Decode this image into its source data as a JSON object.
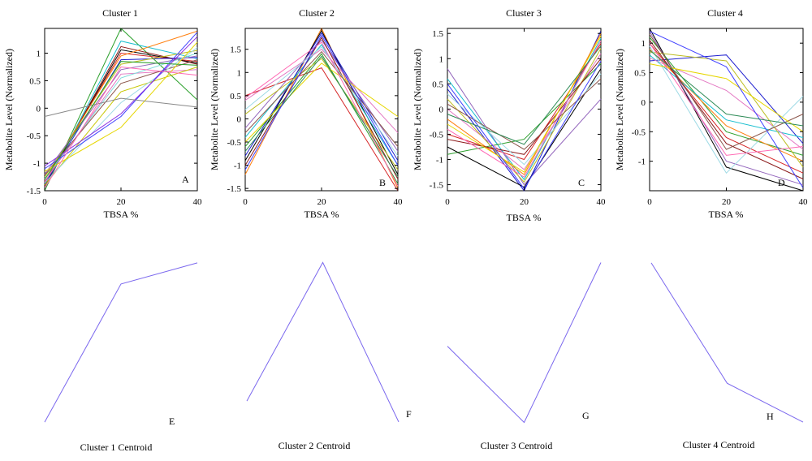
{
  "figure": {
    "ylabel": "Metabolite Level (Normalized)",
    "xlabel": "TBSA %",
    "x_ticks": [
      "0",
      "20",
      "40"
    ]
  },
  "chart_data": [
    {
      "type": "line",
      "title": "Cluster 1",
      "letter": "A",
      "xlabel": "TBSA %",
      "ylabel": "Metabolite Level (Normalized)",
      "x": [
        0,
        20,
        40
      ],
      "xlim": [
        0,
        40
      ],
      "ylim": [
        -1.5,
        1.45
      ],
      "yticks": [
        -1.5,
        -1,
        -0.5,
        0,
        0.5,
        1
      ],
      "ytick_labels": [
        "-1.5",
        "-1",
        "-0.5",
        "0",
        "0.5",
        "1"
      ],
      "grid": false,
      "series": [
        {
          "color": "#2ca02c",
          "values": [
            -1.5,
            1.45,
            0.15
          ]
        },
        {
          "color": "#17becf",
          "values": [
            -1.45,
            1.22,
            0.9
          ]
        },
        {
          "color": "#8b1a1a",
          "values": [
            -1.42,
            1.12,
            0.8
          ]
        },
        {
          "color": "#000000",
          "values": [
            -1.4,
            1.06,
            0.82
          ]
        },
        {
          "color": "#d62728",
          "values": [
            -1.35,
            1.0,
            0.85
          ]
        },
        {
          "color": "#ff7f0e",
          "values": [
            -1.3,
            0.95,
            1.4
          ]
        },
        {
          "color": "#1f1fcf",
          "values": [
            -1.38,
            0.88,
            0.92
          ]
        },
        {
          "color": "#bcbd22",
          "values": [
            -1.25,
            0.8,
            1.05
          ]
        },
        {
          "color": "#9467bd",
          "values": [
            -1.2,
            0.7,
            0.95
          ]
        },
        {
          "color": "#e377c2",
          "values": [
            -1.33,
            0.62,
            0.7
          ]
        },
        {
          "color": "#7fd9d9",
          "values": [
            -1.28,
            0.55,
            1.0
          ]
        },
        {
          "color": "#8c564b",
          "values": [
            -1.22,
            0.45,
            0.88
          ]
        },
        {
          "color": "#c7c700",
          "values": [
            -1.4,
            0.3,
            0.75
          ]
        },
        {
          "color": "#9edae5",
          "values": [
            -1.36,
            0.1,
            1.1
          ]
        },
        {
          "color": "#4040ff",
          "values": [
            -1.1,
            -0.15,
            1.38
          ]
        },
        {
          "color": "#8a2be2",
          "values": [
            -1.05,
            -0.1,
            1.3
          ]
        },
        {
          "color": "#e6d600",
          "values": [
            -1.15,
            -0.35,
            1.2
          ]
        },
        {
          "color": "#888888",
          "values": [
            -0.15,
            0.18,
            0.02
          ]
        },
        {
          "color": "#ff69b4",
          "values": [
            -1.45,
            0.75,
            0.6
          ]
        },
        {
          "color": "#2ca02c",
          "values": [
            -1.3,
            0.85,
            0.78
          ]
        }
      ]
    },
    {
      "type": "line",
      "title": "Cluster 2",
      "letter": "B",
      "xlabel": "TBSA %",
      "ylabel": "Metabolite Level (Normalized)",
      "x": [
        0,
        20,
        40
      ],
      "xlim": [
        0,
        40
      ],
      "ylim": [
        -1.55,
        1.95
      ],
      "yticks": [
        -1.5,
        -1,
        -0.5,
        0,
        0.5,
        1,
        1.5
      ],
      "ytick_labels": [
        "-1.5",
        "-1",
        "-0.5",
        "0",
        "0.5",
        "1",
        "1.5"
      ],
      "grid": false,
      "series": [
        {
          "color": "#d62728",
          "values": [
            0.5,
            1.1,
            -1.55
          ]
        },
        {
          "color": "#ff7f0e",
          "values": [
            -1.2,
            1.95,
            -1.5
          ]
        },
        {
          "color": "#000000",
          "values": [
            -0.9,
            1.9,
            -1.2
          ]
        },
        {
          "color": "#1f1fcf",
          "values": [
            -0.8,
            1.85,
            -0.9
          ]
        },
        {
          "color": "#2ca02c",
          "values": [
            -0.6,
            1.4,
            -1.4
          ]
        },
        {
          "color": "#17becf",
          "values": [
            -0.4,
            1.6,
            -1.0
          ]
        },
        {
          "color": "#9467bd",
          "values": [
            -0.2,
            1.7,
            -0.7
          ]
        },
        {
          "color": "#e377c2",
          "values": [
            0.4,
            1.5,
            -0.3
          ]
        },
        {
          "color": "#bcbd22",
          "values": [
            0.1,
            1.3,
            -1.1
          ]
        },
        {
          "color": "#8b1a1a",
          "values": [
            -1.0,
            1.75,
            -1.3
          ]
        },
        {
          "color": "#9edae5",
          "values": [
            0.2,
            1.55,
            -0.8
          ]
        },
        {
          "color": "#e6d600",
          "values": [
            -0.5,
            1.2,
            0.05
          ]
        },
        {
          "color": "#8c564b",
          "values": [
            -0.3,
            1.45,
            -0.6
          ]
        },
        {
          "color": "#ff69b4",
          "values": [
            0.45,
            1.65,
            -1.45
          ]
        },
        {
          "color": "#2e8b57",
          "values": [
            -0.7,
            1.35,
            -1.25
          ]
        },
        {
          "color": "#4040ff",
          "values": [
            -1.1,
            1.8,
            -1.0
          ]
        }
      ]
    },
    {
      "type": "line",
      "title": "Cluster 3",
      "letter": "C",
      "xlabel": "TBSA %",
      "ylabel": "",
      "x": [
        0,
        20,
        40
      ],
      "xlim": [
        0,
        40
      ],
      "ylim": [
        -1.62,
        1.6
      ],
      "yticks": [
        -1.5,
        -1,
        -0.5,
        0,
        0.5,
        1,
        1.5
      ],
      "ytick_labels": [
        "-1.5",
        "-1",
        "-0.5",
        "0",
        "0.5",
        "1",
        "1.5"
      ],
      "grid": false,
      "series": [
        {
          "color": "#9467bd",
          "values": [
            0.8,
            -1.5,
            0.2
          ]
        },
        {
          "color": "#1f1fcf",
          "values": [
            0.4,
            -1.62,
            1.55
          ]
        },
        {
          "color": "#17becf",
          "values": [
            0.6,
            -1.4,
            1.4
          ]
        },
        {
          "color": "#d62728",
          "values": [
            -0.5,
            -1.0,
            1.3
          ]
        },
        {
          "color": "#ff7f0e",
          "values": [
            -0.2,
            -1.3,
            1.5
          ]
        },
        {
          "color": "#2ca02c",
          "values": [
            -0.9,
            -0.6,
            0.9
          ]
        },
        {
          "color": "#e377c2",
          "values": [
            0.0,
            -1.2,
            1.1
          ]
        },
        {
          "color": "#000000",
          "values": [
            -0.75,
            -1.55,
            0.8
          ]
        },
        {
          "color": "#bcbd22",
          "values": [
            0.2,
            -1.45,
            1.2
          ]
        },
        {
          "color": "#8b1a1a",
          "values": [
            -0.6,
            -0.9,
            1.0
          ]
        },
        {
          "color": "#9edae5",
          "values": [
            0.3,
            -1.1,
            0.7
          ]
        },
        {
          "color": "#ff69b4",
          "values": [
            -0.4,
            -1.35,
            1.35
          ]
        },
        {
          "color": "#8c564b",
          "values": [
            0.1,
            -0.8,
            0.6
          ]
        },
        {
          "color": "#e6d600",
          "values": [
            -0.3,
            -1.25,
            1.45
          ]
        },
        {
          "color": "#4040ff",
          "values": [
            0.5,
            -1.58,
            0.95
          ]
        },
        {
          "color": "#2e8b57",
          "values": [
            -0.1,
            -0.7,
            1.25
          ]
        }
      ]
    },
    {
      "type": "line",
      "title": "Cluster 4",
      "letter": "D",
      "xlabel": "TBSA %",
      "ylabel": "",
      "x": [
        0,
        20,
        40
      ],
      "xlim": [
        0,
        40
      ],
      "ylim": [
        -1.5,
        1.25
      ],
      "yticks": [
        -1,
        -0.5,
        0,
        0.5,
        1
      ],
      "ytick_labels": [
        "-1",
        "-0.5",
        "0",
        "0.5",
        "1"
      ],
      "grid": false,
      "series": [
        {
          "color": "#1f1fcf",
          "values": [
            0.7,
            0.8,
            -0.7
          ]
        },
        {
          "color": "#000000",
          "values": [
            1.25,
            -1.1,
            -1.5
          ]
        },
        {
          "color": "#2ca02c",
          "values": [
            1.1,
            -0.5,
            -0.9
          ]
        },
        {
          "color": "#d62728",
          "values": [
            1.0,
            -0.6,
            -1.2
          ]
        },
        {
          "color": "#ff7f0e",
          "values": [
            0.9,
            -0.4,
            -1.0
          ]
        },
        {
          "color": "#17becf",
          "values": [
            0.8,
            -0.3,
            -0.6
          ]
        },
        {
          "color": "#9467bd",
          "values": [
            1.2,
            -1.0,
            -1.4
          ]
        },
        {
          "color": "#e377c2",
          "values": [
            0.75,
            0.2,
            -0.8
          ]
        },
        {
          "color": "#bcbd22",
          "values": [
            0.85,
            0.7,
            -1.1
          ]
        },
        {
          "color": "#8b1a1a",
          "values": [
            1.05,
            -0.7,
            -1.3
          ]
        },
        {
          "color": "#9edae5",
          "values": [
            0.95,
            -1.2,
            0.1
          ]
        },
        {
          "color": "#8c564b",
          "values": [
            1.15,
            -0.8,
            -0.2
          ]
        },
        {
          "color": "#e6d600",
          "values": [
            0.65,
            0.4,
            -0.5
          ]
        },
        {
          "color": "#ff69b4",
          "values": [
            1.0,
            -0.9,
            -0.75
          ]
        },
        {
          "color": "#4040ff",
          "values": [
            1.2,
            0.6,
            -1.45
          ]
        },
        {
          "color": "#2e8b57",
          "values": [
            0.88,
            -0.2,
            -0.4
          ]
        }
      ]
    },
    {
      "type": "line",
      "caption": "Cluster 1 Centroid",
      "letter": "E",
      "x": [
        0,
        20,
        40
      ],
      "ylim": [
        -1.3,
        0.85
      ],
      "axes_visible": false,
      "series": [
        {
          "color": "#7b68ee",
          "values": [
            -1.28,
            0.55,
            0.83
          ]
        }
      ]
    },
    {
      "type": "line",
      "caption": "Cluster 2 Centroid",
      "letter": "F",
      "x": [
        0,
        20,
        40
      ],
      "ylim": [
        -1.25,
        1.62
      ],
      "axes_visible": false,
      "series": [
        {
          "color": "#7b68ee",
          "values": [
            -0.85,
            1.6,
            -1.22
          ]
        }
      ]
    },
    {
      "type": "line",
      "caption": "Cluster 3 Centroid",
      "letter": "G",
      "x": [
        0,
        20,
        40
      ],
      "ylim": [
        -1.38,
        1.22
      ],
      "axes_visible": false,
      "series": [
        {
          "color": "#7b68ee",
          "values": [
            -0.14,
            -1.36,
            1.2
          ]
        }
      ]
    },
    {
      "type": "line",
      "caption": "Cluster 4 Centroid",
      "letter": "H",
      "x": [
        0,
        20,
        40
      ],
      "ylim": [
        -1.07,
        1.02
      ],
      "axes_visible": false,
      "series": [
        {
          "color": "#7b68ee",
          "values": [
            1.0,
            -0.55,
            -1.05
          ]
        }
      ]
    }
  ]
}
